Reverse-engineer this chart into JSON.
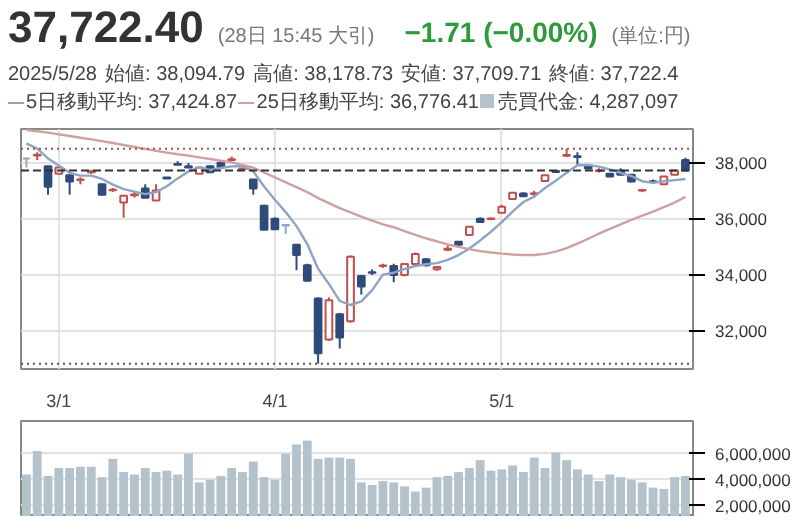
{
  "chart_data": [
    {
      "type": "candlestick",
      "title": "37,722.40",
      "subtitle": "(28日 15:45 大引)",
      "annotations": [
        "−1.71 (−0.00%)",
        "(単位:円)",
        "2025/5/28",
        "始値: 38,094.79",
        "高値: 38,178.73",
        "安値: 37,709.71",
        "終値: 37,722.4"
      ],
      "categories": [
        null,
        null,
        null,
        "3/1",
        null,
        null,
        null,
        null,
        null,
        null,
        null,
        null,
        null,
        null,
        null,
        null,
        null,
        null,
        null,
        null,
        null,
        null,
        null,
        "4/1",
        null,
        null,
        null,
        null,
        null,
        null,
        null,
        null,
        null,
        null,
        null,
        null,
        null,
        null,
        null,
        null,
        null,
        null,
        null,
        null,
        "5/1",
        null,
        null,
        null,
        null,
        null,
        null,
        null,
        null,
        null,
        null,
        null,
        null,
        null,
        null,
        null,
        null,
        null
      ],
      "ohlc": [
        [
          38150,
          38160,
          37830,
          38150
        ],
        [
          38260,
          38370,
          38090,
          38280
        ],
        [
          37870,
          37870,
          36860,
          37140
        ],
        [
          37610,
          37850,
          37600,
          37830
        ],
        [
          37550,
          37570,
          36860,
          37330
        ],
        [
          37380,
          37480,
          37230,
          37400
        ],
        [
          37660,
          37750,
          37600,
          37690
        ],
        [
          37230,
          37250,
          36830,
          36860
        ],
        [
          37020,
          37100,
          36960,
          37040
        ],
        [
          36580,
          36840,
          36040,
          36820
        ],
        [
          36840,
          36950,
          36760,
          36870
        ],
        [
          37080,
          37230,
          36740,
          36750
        ],
        [
          36650,
          37230,
          36640,
          37010
        ],
        [
          37470,
          37480,
          37420,
          37440
        ],
        [
          37950,
          38050,
          37920,
          37930
        ],
        [
          37870,
          37990,
          37800,
          37830
        ],
        [
          37610,
          37850,
          37600,
          37830
        ],
        [
          37870,
          37900,
          37640,
          37660
        ],
        [
          38000,
          38010,
          37810,
          37830
        ],
        [
          38100,
          38220,
          38050,
          38120
        ],
        [
          37770,
          37800,
          37700,
          37790
        ],
        [
          37400,
          37420,
          36860,
          37080
        ],
        [
          36470,
          36500,
          35600,
          35610
        ],
        [
          36000,
          36050,
          35600,
          35630
        ],
        [
          35780,
          35800,
          35460,
          35760
        ],
        [
          35080,
          35100,
          34170,
          34710
        ],
        [
          34350,
          34400,
          33770,
          33790
        ],
        [
          33160,
          33200,
          30840,
          31210
        ],
        [
          31700,
          33200,
          31650,
          33100
        ],
        [
          32600,
          32650,
          31380,
          31770
        ],
        [
          32350,
          34700,
          32300,
          34650
        ],
        [
          33960,
          34000,
          33300,
          33590
        ],
        [
          34100,
          34200,
          34000,
          34080
        ],
        [
          34320,
          34400,
          34250,
          34340
        ],
        [
          34320,
          34400,
          33740,
          34000
        ],
        [
          34000,
          34400,
          33950,
          34390
        ],
        [
          34390,
          34800,
          34360,
          34750
        ],
        [
          34560,
          34600,
          34300,
          34350
        ],
        [
          34200,
          34300,
          34150,
          34280
        ],
        [
          34900,
          35050,
          34850,
          34930
        ],
        [
          35180,
          35200,
          35050,
          35080
        ],
        [
          35420,
          35750,
          35400,
          35720
        ],
        [
          36000,
          36050,
          35870,
          35890
        ],
        [
          35990,
          36050,
          35950,
          36010
        ],
        [
          36220,
          36500,
          36200,
          36430
        ],
        [
          36710,
          36950,
          36700,
          36930
        ],
        [
          36900,
          36950,
          36780,
          36800
        ],
        [
          36880,
          37000,
          36750,
          36910
        ],
        [
          37350,
          37550,
          37330,
          37550
        ],
        [
          37700,
          37720,
          37650,
          37670
        ],
        [
          38250,
          38500,
          38200,
          38270
        ],
        [
          38230,
          38370,
          37940,
          38200
        ],
        [
          37870,
          37900,
          37760,
          37790
        ],
        [
          37700,
          37800,
          37650,
          37720
        ],
        [
          37610,
          37620,
          37480,
          37510
        ],
        [
          37720,
          37800,
          37550,
          37570
        ],
        [
          37570,
          37600,
          37300,
          37330
        ],
        [
          37010,
          37050,
          36950,
          37030
        ],
        [
          37340,
          37400,
          37250,
          37320
        ],
        [
          37230,
          37520,
          37200,
          37510
        ],
        [
          37570,
          37730,
          37550,
          37720
        ],
        [
          38094.79,
          38178.73,
          37709.71,
          37722.4
        ]
      ],
      "colors": [
        "#9aa5b1",
        "#c0504d",
        "#2f4b7c",
        "#c0504d",
        "#2f4b7c",
        "#c0504d",
        "#c0504d",
        "#2f4b7c",
        "#c0504d",
        "#c0504d",
        "#c0504d",
        "#2f4b7c",
        "#c0504d",
        "#2f4b7c",
        "#2f4b7c",
        "#2f4b7c",
        "#c0504d",
        "#2f4b7c",
        "#2f4b7c",
        "#c0504d",
        "#c0504d",
        "#2f4b7c",
        "#2f4b7c",
        "#2f4b7c",
        "#8fa8c8",
        "#2f4b7c",
        "#2f4b7c",
        "#2f4b7c",
        "#c0504d",
        "#2f4b7c",
        "#c0504d",
        "#2f4b7c",
        "#2f4b7c",
        "#c0504d",
        "#2f4b7c",
        "#c0504d",
        "#c0504d",
        "#2f4b7c",
        "#c0504d",
        "#c0504d",
        "#2f4b7c",
        "#c0504d",
        "#2f4b7c",
        "#c0504d",
        "#c0504d",
        "#c0504d",
        "#2f4b7c",
        "#c0504d",
        "#c0504d",
        "#2f4b7c",
        "#c0504d",
        "#2f4b7c",
        "#2f4b7c",
        "#c0504d",
        "#2f4b7c",
        "#2f4b7c",
        "#2f4b7c",
        "#c0504d",
        "#2f4b7c",
        "#c0504d",
        "#c0504d",
        "#2f4b7c"
      ],
      "series": [
        {
          "type": "line",
          "name": "5日移動平均: 37,424.87",
          "color": "#8ea4c4",
          "values": [
            38690,
            38500,
            38150,
            37900,
            37640,
            37540,
            37540,
            37420,
            37220,
            37060,
            36970,
            36880,
            36950,
            37160,
            37440,
            37690,
            37840,
            37740,
            37810,
            37870,
            37880,
            37690,
            37150,
            36680,
            36240,
            35740,
            35100,
            34220,
            33680,
            33080,
            32930,
            33060,
            33460,
            34010,
            34080,
            34210,
            34320,
            34380,
            34420,
            34540,
            34710,
            34940,
            35230,
            35540,
            35880,
            36260,
            36600,
            36790,
            37100,
            37360,
            37640,
            37910,
            37920,
            37860,
            37760,
            37640,
            37520,
            37340,
            37280,
            37340,
            37380,
            37420
          ]
        },
        {
          "type": "line",
          "name": "25日移動平均: 36,776.41",
          "color": "#d0a0a0",
          "values": [
            39160,
            39120,
            39070,
            39010,
            38950,
            38890,
            38830,
            38770,
            38700,
            38630,
            38560,
            38490,
            38420,
            38360,
            38300,
            38250,
            38190,
            38130,
            38070,
            38010,
            37920,
            37820,
            37650,
            37480,
            37300,
            37130,
            36950,
            36740,
            36560,
            36380,
            36230,
            36080,
            35940,
            35800,
            35700,
            35560,
            35430,
            35300,
            35200,
            35090,
            35000,
            34920,
            34850,
            34800,
            34760,
            34730,
            34710,
            34710,
            34750,
            34830,
            34960,
            35120,
            35290,
            35470,
            35640,
            35800,
            35960,
            36110,
            36260,
            36420,
            36580,
            36780
          ]
        }
      ],
      "ylim": [
        30650,
        39200
      ],
      "yticks": [
        {
          "value": 32000,
          "label": "32,000"
        },
        {
          "value": 34000,
          "label": "34,000"
        },
        {
          "value": 36000,
          "label": "36,000"
        },
        {
          "value": 38000,
          "label": "38,000"
        }
      ],
      "ref_lines": [
        {
          "axis": "y",
          "value": 38500,
          "color": "#a05050",
          "line_style": "dotted"
        },
        {
          "axis": "y",
          "value": 37722.4,
          "color": "#333333",
          "line_style": "dashed"
        },
        {
          "axis": "y",
          "value": 30840,
          "color": "#555555",
          "line_style": "dotted"
        }
      ],
      "grid": true,
      "legend": "top"
    },
    {
      "type": "bar",
      "categories": [
        null,
        null,
        null,
        null,
        null,
        null,
        null,
        null,
        null,
        null,
        null,
        null,
        null,
        null,
        null,
        null,
        null,
        null,
        null,
        null,
        null,
        null,
        null,
        null,
        null,
        null,
        null,
        null,
        null,
        null,
        null,
        null,
        null,
        null,
        null,
        null,
        null,
        null,
        null,
        null,
        null,
        null,
        null,
        null,
        null,
        null,
        null,
        null,
        null,
        null,
        null,
        null,
        null,
        null,
        null,
        null,
        null,
        null,
        null,
        null,
        null,
        null
      ],
      "series": [
        {
          "name": "売買代金: 4,287,097",
          "color": "#b4c2cc",
          "values": [
            4400000,
            6200000,
            4300000,
            4900000,
            4900000,
            5000000,
            5000000,
            4200000,
            5600000,
            4600000,
            4400000,
            4900000,
            4600000,
            4700000,
            4400000,
            6000000,
            3800000,
            4000000,
            4300000,
            4900000,
            4600000,
            5400000,
            4200000,
            4000000,
            6000000,
            6700000,
            7000000,
            5600000,
            5700000,
            5700000,
            5600000,
            3800000,
            3600000,
            3900000,
            3800000,
            3500000,
            3100000,
            3400000,
            4200000,
            4300000,
            4600000,
            4900000,
            5500000,
            4700000,
            4800000,
            5100000,
            4600000,
            5700000,
            4900000,
            6100000,
            5500000,
            4800000,
            4400000,
            3900000,
            4400000,
            4200000,
            4000000,
            3800000,
            3400000,
            3300000,
            4200000,
            4290000
          ]
        }
      ],
      "ylim": [
        1150000,
        8500000
      ],
      "yticks": [
        {
          "value": 2000000,
          "label": "2,000,000"
        },
        {
          "value": 4000000,
          "label": "4,000,000"
        },
        {
          "value": 6000000,
          "label": "6,000,000"
        }
      ],
      "grid": "y",
      "tick_labels": "y"
    }
  ]
}
